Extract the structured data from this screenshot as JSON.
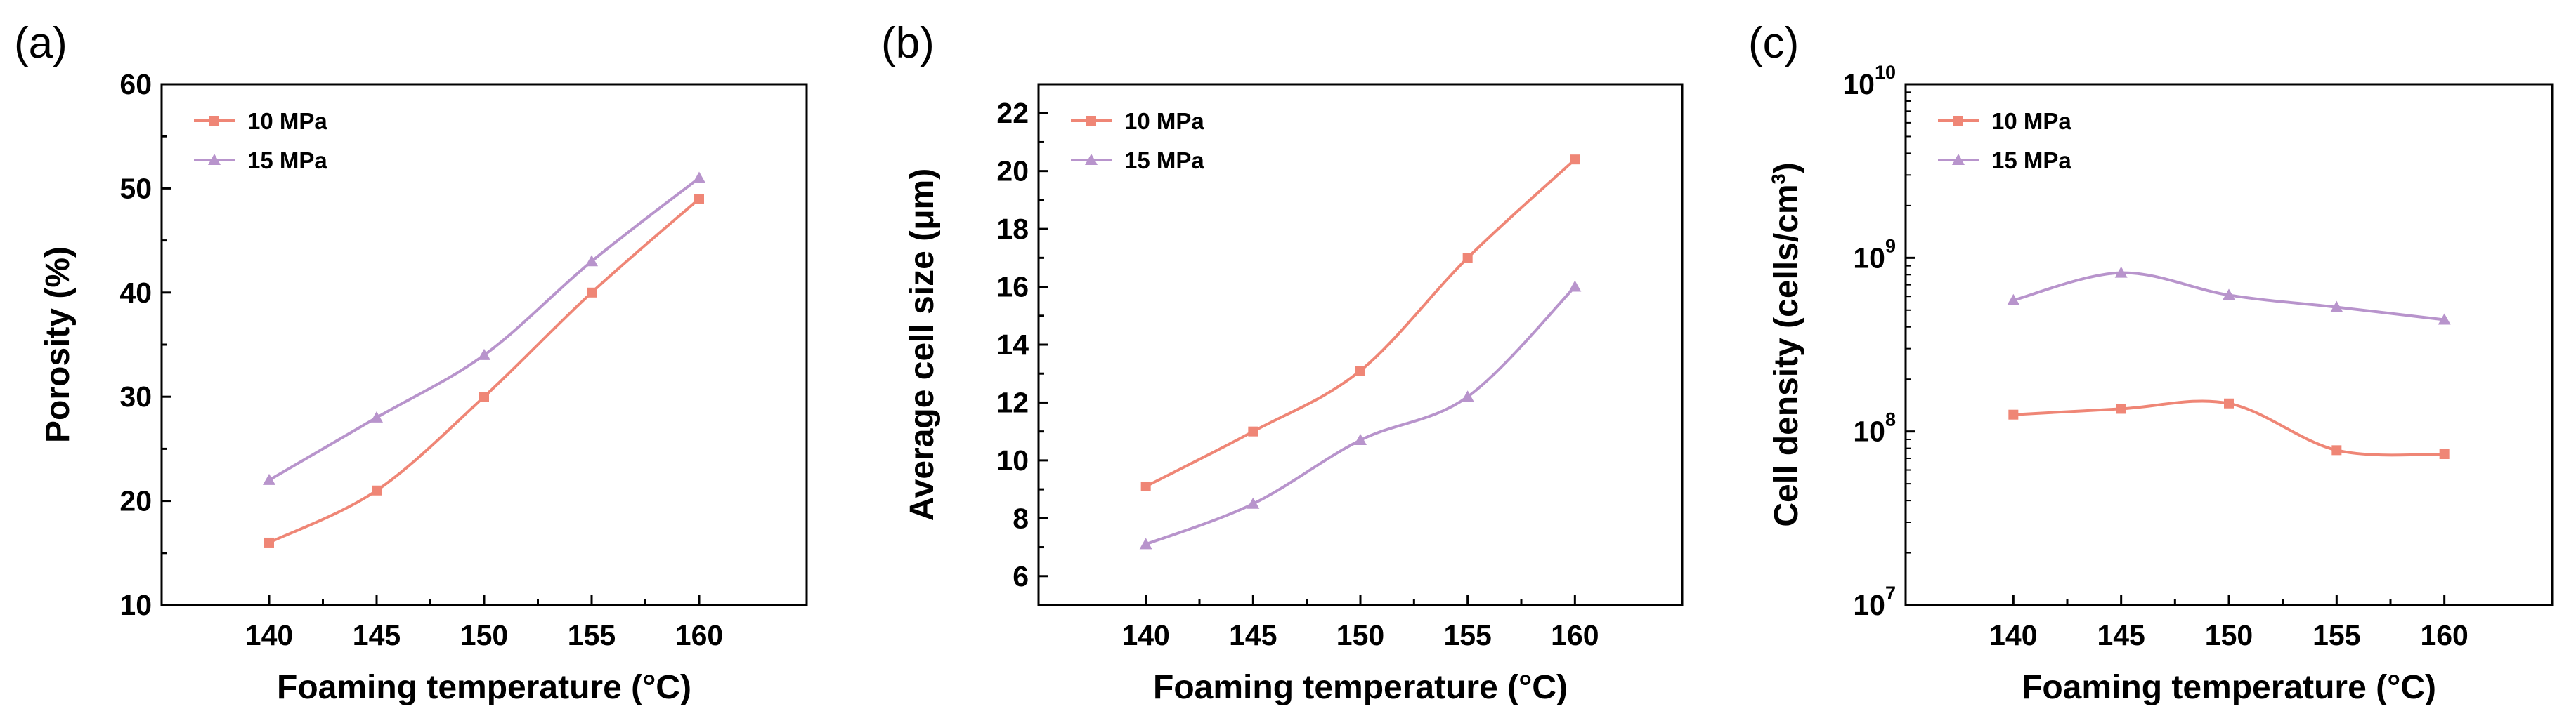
{
  "panels": [
    {
      "label": "(a)"
    },
    {
      "label": "(b)"
    },
    {
      "label": "(c)"
    }
  ],
  "chart_data": [
    {
      "type": "line",
      "panel": "(a)",
      "title": "",
      "xlabel": "Foaming temperature (°C)",
      "ylabel": "Porosity (%)",
      "x": [
        140,
        145,
        150,
        155,
        160
      ],
      "xlim": [
        135,
        165
      ],
      "ylim": [
        10,
        60
      ],
      "xticks": [
        "140",
        "145",
        "150",
        "155",
        "160"
      ],
      "yticks": [
        "10",
        "20",
        "30",
        "40",
        "50",
        "60"
      ],
      "ytick_values": [
        10,
        20,
        30,
        40,
        50,
        60
      ],
      "yscale": "linear",
      "legend_position": "top-left",
      "series": [
        {
          "name": "10 MPa",
          "marker": "square",
          "color": "#ef8676",
          "values": [
            16,
            21,
            30,
            40,
            49
          ]
        },
        {
          "name": "15 MPa",
          "marker": "triangle",
          "color": "#b894cc",
          "values": [
            22,
            28,
            34,
            43,
            51
          ]
        }
      ]
    },
    {
      "type": "line",
      "panel": "(b)",
      "title": "",
      "xlabel": "Foaming temperature (°C)",
      "ylabel": "Average cell size (μm)",
      "x": [
        140,
        145,
        150,
        155,
        160
      ],
      "xlim": [
        135,
        165
      ],
      "ylim": [
        5,
        23
      ],
      "xticks": [
        "140",
        "145",
        "150",
        "155",
        "160"
      ],
      "yticks": [
        "6",
        "8",
        "10",
        "12",
        "14",
        "16",
        "18",
        "20",
        "22"
      ],
      "ytick_values": [
        6,
        8,
        10,
        12,
        14,
        16,
        18,
        20,
        22
      ],
      "yscale": "linear",
      "legend_position": "top-left",
      "series": [
        {
          "name": "10 MPa",
          "marker": "square",
          "color": "#ef8676",
          "values": [
            9.1,
            11.0,
            13.1,
            17.0,
            20.4
          ]
        },
        {
          "name": "15 MPa",
          "marker": "triangle",
          "color": "#b894cc",
          "values": [
            7.1,
            8.5,
            10.7,
            12.2,
            16.0
          ]
        }
      ]
    },
    {
      "type": "line",
      "panel": "(c)",
      "title": "",
      "xlabel": "Foaming temperature (°C)",
      "ylabel": "Cell density (cells/cm³)",
      "ylabel_main": "Cell density (cells/cm",
      "ylabel_sup": "3",
      "ylabel_end": ")",
      "x": [
        140,
        145,
        150,
        155,
        160
      ],
      "xlim": [
        135,
        165
      ],
      "ylim": [
        10000000,
        10000000000
      ],
      "xticks": [
        "140",
        "145",
        "150",
        "155",
        "160"
      ],
      "yticks": [
        "10^7",
        "10^8",
        "10^9",
        "10^10"
      ],
      "ytick_values": [
        10000000,
        100000000,
        1000000000,
        10000000000
      ],
      "ytick_base": "10",
      "ytick_exponents": [
        "7",
        "8",
        "9",
        "10"
      ],
      "yscale": "log",
      "legend_position": "top-left",
      "series": [
        {
          "name": "10 MPa",
          "marker": "square",
          "color": "#ef8676",
          "values": [
            125000000,
            135000000,
            145000000,
            78000000,
            74000000
          ]
        },
        {
          "name": "15 MPa",
          "marker": "triangle",
          "color": "#b894cc",
          "values": [
            570000000,
            820000000,
            610000000,
            520000000,
            440000000
          ]
        }
      ]
    }
  ]
}
